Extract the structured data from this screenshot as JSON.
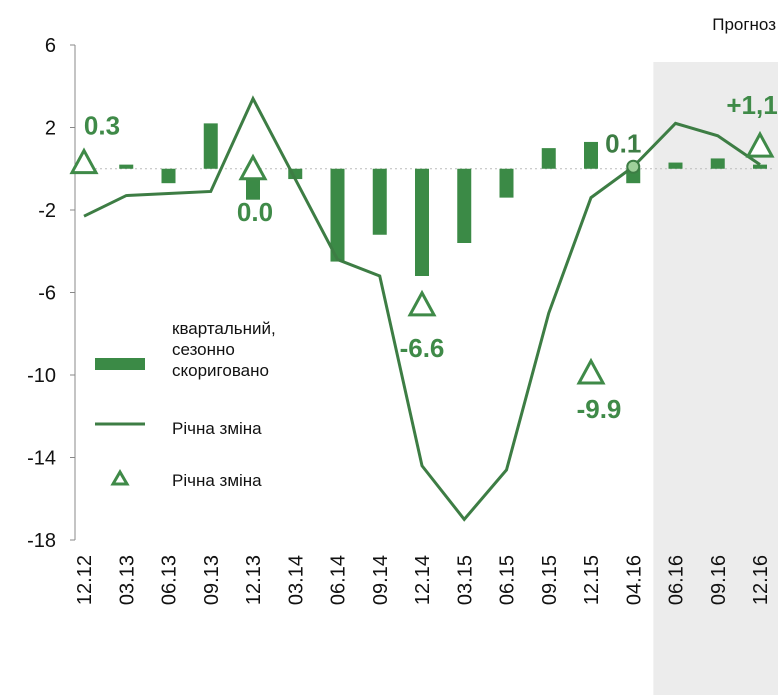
{
  "chart_data": {
    "type": "bar-line",
    "categories": [
      "12.12",
      "03.13",
      "06.13",
      "09.13",
      "12.13",
      "03.14",
      "06.14",
      "09.14",
      "12.14",
      "03.15",
      "06.15",
      "09.15",
      "12.15",
      "04.16",
      "06.16",
      "09.16",
      "12.16"
    ],
    "ylim": [
      -18,
      6
    ],
    "yticks": [
      6,
      2,
      -2,
      -6,
      -10,
      -14,
      -18
    ],
    "forecast": {
      "label": "Прогноз",
      "start": "06.16"
    },
    "series": [
      {
        "name": "квартальний,\nсезонно\nскориговано",
        "type": "bar",
        "color": "#3b8a46",
        "values": [
          0,
          0.2,
          -0.7,
          2.2,
          -1.5,
          -0.5,
          -4.5,
          -3.2,
          -5.2,
          -3.6,
          -1.4,
          1.0,
          1.3,
          -0.7,
          0.3,
          0.5,
          0.2
        ]
      },
      {
        "name": "Річна зміна",
        "type": "line",
        "color": "#3d7d44",
        "values": [
          -2.3,
          -1.3,
          -1.2,
          -1.1,
          3.4,
          -0.5,
          -4.4,
          -5.2,
          -14.4,
          -17,
          -14.6,
          -7,
          -1.4,
          0.1,
          2.2,
          1.6,
          0.2
        ]
      },
      {
        "name": "Річна зміна",
        "type": "marker",
        "color": "#3f8a48",
        "values": [
          0.3,
          null,
          null,
          null,
          0.0,
          null,
          null,
          null,
          -6.6,
          null,
          null,
          null,
          -9.9,
          null,
          null,
          null,
          1.1
        ],
        "value_labels": [
          "0.3",
          null,
          null,
          null,
          "0.0",
          null,
          null,
          null,
          "-6.6",
          null,
          null,
          null,
          "-9.9",
          null,
          null,
          null,
          "+1,1"
        ]
      }
    ],
    "annotations": [
      {
        "x": "04.16",
        "y": 0.1,
        "text": "0.1"
      }
    ]
  }
}
